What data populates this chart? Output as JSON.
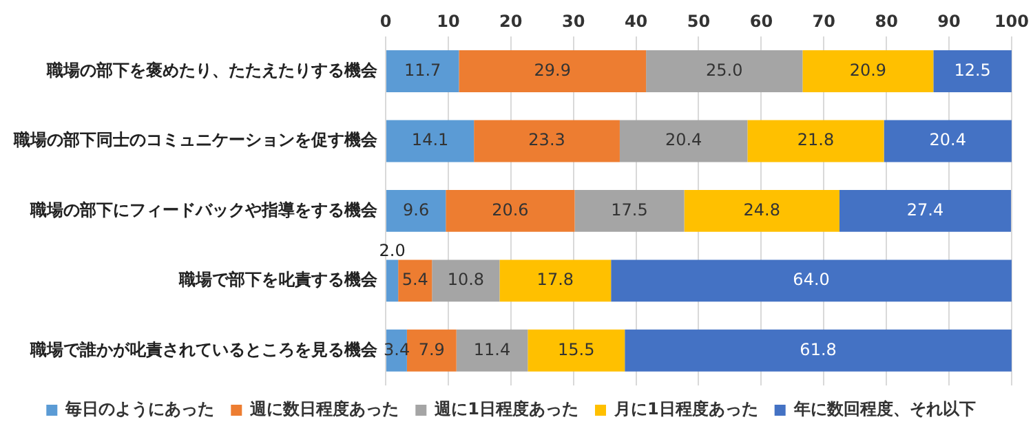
{
  "chart_data": {
    "type": "bar",
    "orientation": "horizontal",
    "stacked": true,
    "categories": [
      "職場の部下を褒めたり、たたえたりする機会",
      "職場の部下同士のコミュニケーションを促す機会",
      "職場の部下にフィードバックや指導をする機会",
      "職場で部下を叱責する機会",
      "職場で誰かが叱責されているところを見る機会"
    ],
    "series": [
      {
        "name": "毎日のようにあった",
        "color": "#5b9bd5",
        "values": [
          11.7,
          14.1,
          9.6,
          2.0,
          3.4
        ],
        "value_labels": [
          "11.7",
          "14.1",
          "9.6",
          "2.0",
          "3.4"
        ]
      },
      {
        "name": "週に数日程度あった",
        "color": "#ed7d31",
        "values": [
          29.9,
          23.3,
          20.6,
          5.4,
          7.9
        ],
        "value_labels": [
          "29.9",
          "23.3",
          "20.6",
          "5.4",
          "7.9"
        ]
      },
      {
        "name": "週に1日程度あった",
        "color": "#a5a5a5",
        "values": [
          25.0,
          20.4,
          17.5,
          10.8,
          11.4
        ],
        "value_labels": [
          "25.0",
          "20.4",
          "17.5",
          "10.8",
          "11.4"
        ]
      },
      {
        "name": "月に1日程度あった",
        "color": "#ffc000",
        "values": [
          20.9,
          21.8,
          24.8,
          17.8,
          15.5
        ],
        "value_labels": [
          "20.9",
          "21.8",
          "24.8",
          "17.8",
          "15.5"
        ]
      },
      {
        "name": "年に数回程度、それ以下",
        "color": "#4472c4",
        "values": [
          12.5,
          20.4,
          27.4,
          64.0,
          61.8
        ],
        "value_labels": [
          "12.5",
          "20.4",
          "27.4",
          "64.0",
          "61.8"
        ]
      }
    ],
    "xlim": [
      0,
      100
    ],
    "xticks": [
      0,
      10,
      20,
      30,
      40,
      50,
      60,
      70,
      80,
      90,
      100
    ],
    "grid": "x",
    "legend": "bottom"
  }
}
